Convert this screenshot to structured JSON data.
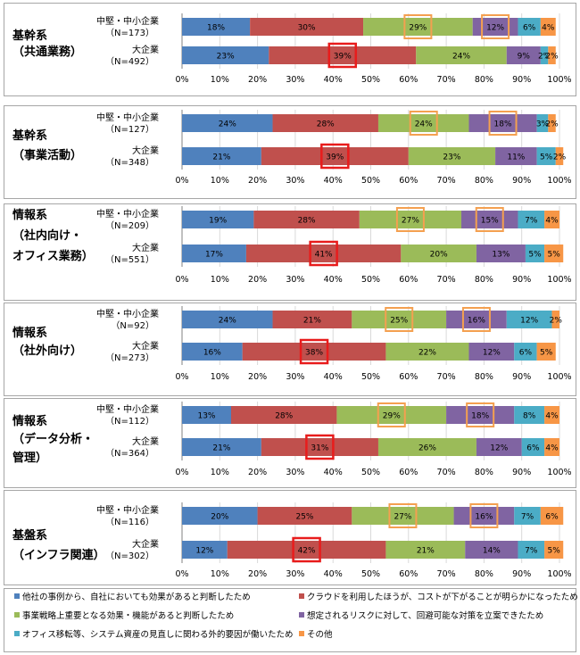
{
  "chart_data": {
    "type": "bar",
    "stacked": true,
    "orientation": "horizontal",
    "x_ticks": [
      "0%",
      "10%",
      "20%",
      "30%",
      "40%",
      "50%",
      "60%",
      "70%",
      "80%",
      "90%",
      "100%"
    ],
    "xlim": [
      0,
      100
    ],
    "grid": true,
    "legend_position": "bottom",
    "colors": [
      "#4f81bd",
      "#c0504d",
      "#9bbb59",
      "#8064a2",
      "#4bacc6",
      "#f79646"
    ],
    "highlight_colors": {
      "red": "#e81c1c",
      "orange": "#f4a050"
    },
    "legend": [
      "他社の事例から、自社においても効果があると判断したため",
      "クラウドを利用したほうが、コストが下がることが明らかになったため",
      "事業戦略上重要となる効果・機能があると判断したため",
      "想定されるリスクに対して、回避可能な対策を立案できたため",
      "オフィス移転等、システム資産の見直しに関わる外的要因が働いたため",
      "その他"
    ],
    "panels": [
      {
        "title_lines": [
          "基幹系",
          "（共通業務）"
        ],
        "rows": [
          {
            "label": "中堅・中小企業",
            "n": "（N=173）",
            "values": [
              18,
              30,
              29,
              12,
              6,
              4
            ],
            "labels": [
              "18%",
              "30%",
              "29%",
              "12%",
              "6%",
              "4%"
            ],
            "highlight": [
              [
                2,
                "orange"
              ],
              [
                3,
                "orange"
              ]
            ]
          },
          {
            "label": "大企業",
            "n": "（N=492）",
            "values": [
              23,
              39,
              24,
              9,
              2,
              2
            ],
            "labels": [
              "23%",
              "39%",
              "24%",
              "9%",
              "2%",
              "2%"
            ],
            "highlight": [
              [
                1,
                "red"
              ]
            ]
          }
        ]
      },
      {
        "title_lines": [
          "基幹系",
          "（事業活動）"
        ],
        "rows": [
          {
            "label": "中堅・中小企業",
            "n": "（N=127）",
            "values": [
              24,
              28,
              24,
              18,
              3,
              2
            ],
            "labels": [
              "24%",
              "28%",
              "24%",
              "18%",
              "3%",
              "2%"
            ],
            "highlight": [
              [
                2,
                "orange"
              ],
              [
                3,
                "orange"
              ]
            ]
          },
          {
            "label": "大企業",
            "n": "（N=348）",
            "values": [
              21,
              39,
              23,
              11,
              5,
              2
            ],
            "labels": [
              "21%",
              "39%",
              "23%",
              "11%",
              "5%",
              "2%"
            ],
            "highlight": [
              [
                1,
                "red"
              ]
            ]
          }
        ]
      },
      {
        "title_lines": [
          "情報系",
          "（社内向け・",
          "オフィス業務）"
        ],
        "rows": [
          {
            "label": "中堅・中小企業",
            "n": "（N=209）",
            "values": [
              19,
              28,
              27,
              15,
              7,
              4
            ],
            "labels": [
              "19%",
              "28%",
              "27%",
              "15%",
              "7%",
              "4%"
            ],
            "highlight": [
              [
                2,
                "orange"
              ],
              [
                3,
                "orange"
              ]
            ]
          },
          {
            "label": "大企業",
            "n": "（N=551）",
            "values": [
              17,
              41,
              20,
              13,
              5,
              5
            ],
            "labels": [
              "17%",
              "41%",
              "20%",
              "13%",
              "5%",
              "5%"
            ],
            "highlight": [
              [
                1,
                "red"
              ]
            ]
          }
        ]
      },
      {
        "title_lines": [
          "情報系",
          "（社外向け）"
        ],
        "rows": [
          {
            "label": "中堅・中小企業",
            "n": "（N=92）",
            "values": [
              24,
              21,
              25,
              16,
              12,
              2
            ],
            "labels": [
              "24%",
              "21%",
              "25%",
              "16%",
              "12%",
              "2%"
            ],
            "highlight": [
              [
                2,
                "orange"
              ],
              [
                3,
                "orange"
              ]
            ]
          },
          {
            "label": "大企業",
            "n": "（N=273）",
            "values": [
              16,
              38,
              22,
              12,
              6,
              5
            ],
            "labels": [
              "16%",
              "38%",
              "22%",
              "12%",
              "6%",
              "5%"
            ],
            "highlight": [
              [
                1,
                "red"
              ]
            ]
          }
        ]
      },
      {
        "title_lines": [
          "情報系",
          "（データ分析・",
          "管理）"
        ],
        "rows": [
          {
            "label": "中堅・中小企業",
            "n": "（N=112）",
            "values": [
              13,
              28,
              29,
              18,
              8,
              4
            ],
            "labels": [
              "13%",
              "28%",
              "29%",
              "18%",
              "8%",
              "4%"
            ],
            "highlight": [
              [
                2,
                "orange"
              ],
              [
                3,
                "orange"
              ]
            ]
          },
          {
            "label": "大企業",
            "n": "（N=364）",
            "values": [
              21,
              31,
              26,
              12,
              6,
              4
            ],
            "labels": [
              "21%",
              "31%",
              "26%",
              "12%",
              "6%",
              "4%"
            ],
            "highlight": [
              [
                1,
                "red"
              ]
            ]
          }
        ]
      },
      {
        "title_lines": [
          "基盤系",
          "（インフラ関連）"
        ],
        "rows": [
          {
            "label": "中堅・中小企業",
            "n": "（N=116）",
            "values": [
              20,
              25,
              27,
              16,
              7,
              6
            ],
            "labels": [
              "20%",
              "25%",
              "27%",
              "16%",
              "7%",
              "6%"
            ],
            "highlight": [
              [
                2,
                "orange"
              ],
              [
                3,
                "orange"
              ]
            ]
          },
          {
            "label": "大企業",
            "n": "（N=302）",
            "values": [
              12,
              42,
              21,
              14,
              7,
              5
            ],
            "labels": [
              "12%",
              "42%",
              "21%",
              "14%",
              "7%",
              "5%"
            ],
            "highlight": [
              [
                1,
                "red"
              ]
            ]
          }
        ]
      }
    ]
  }
}
